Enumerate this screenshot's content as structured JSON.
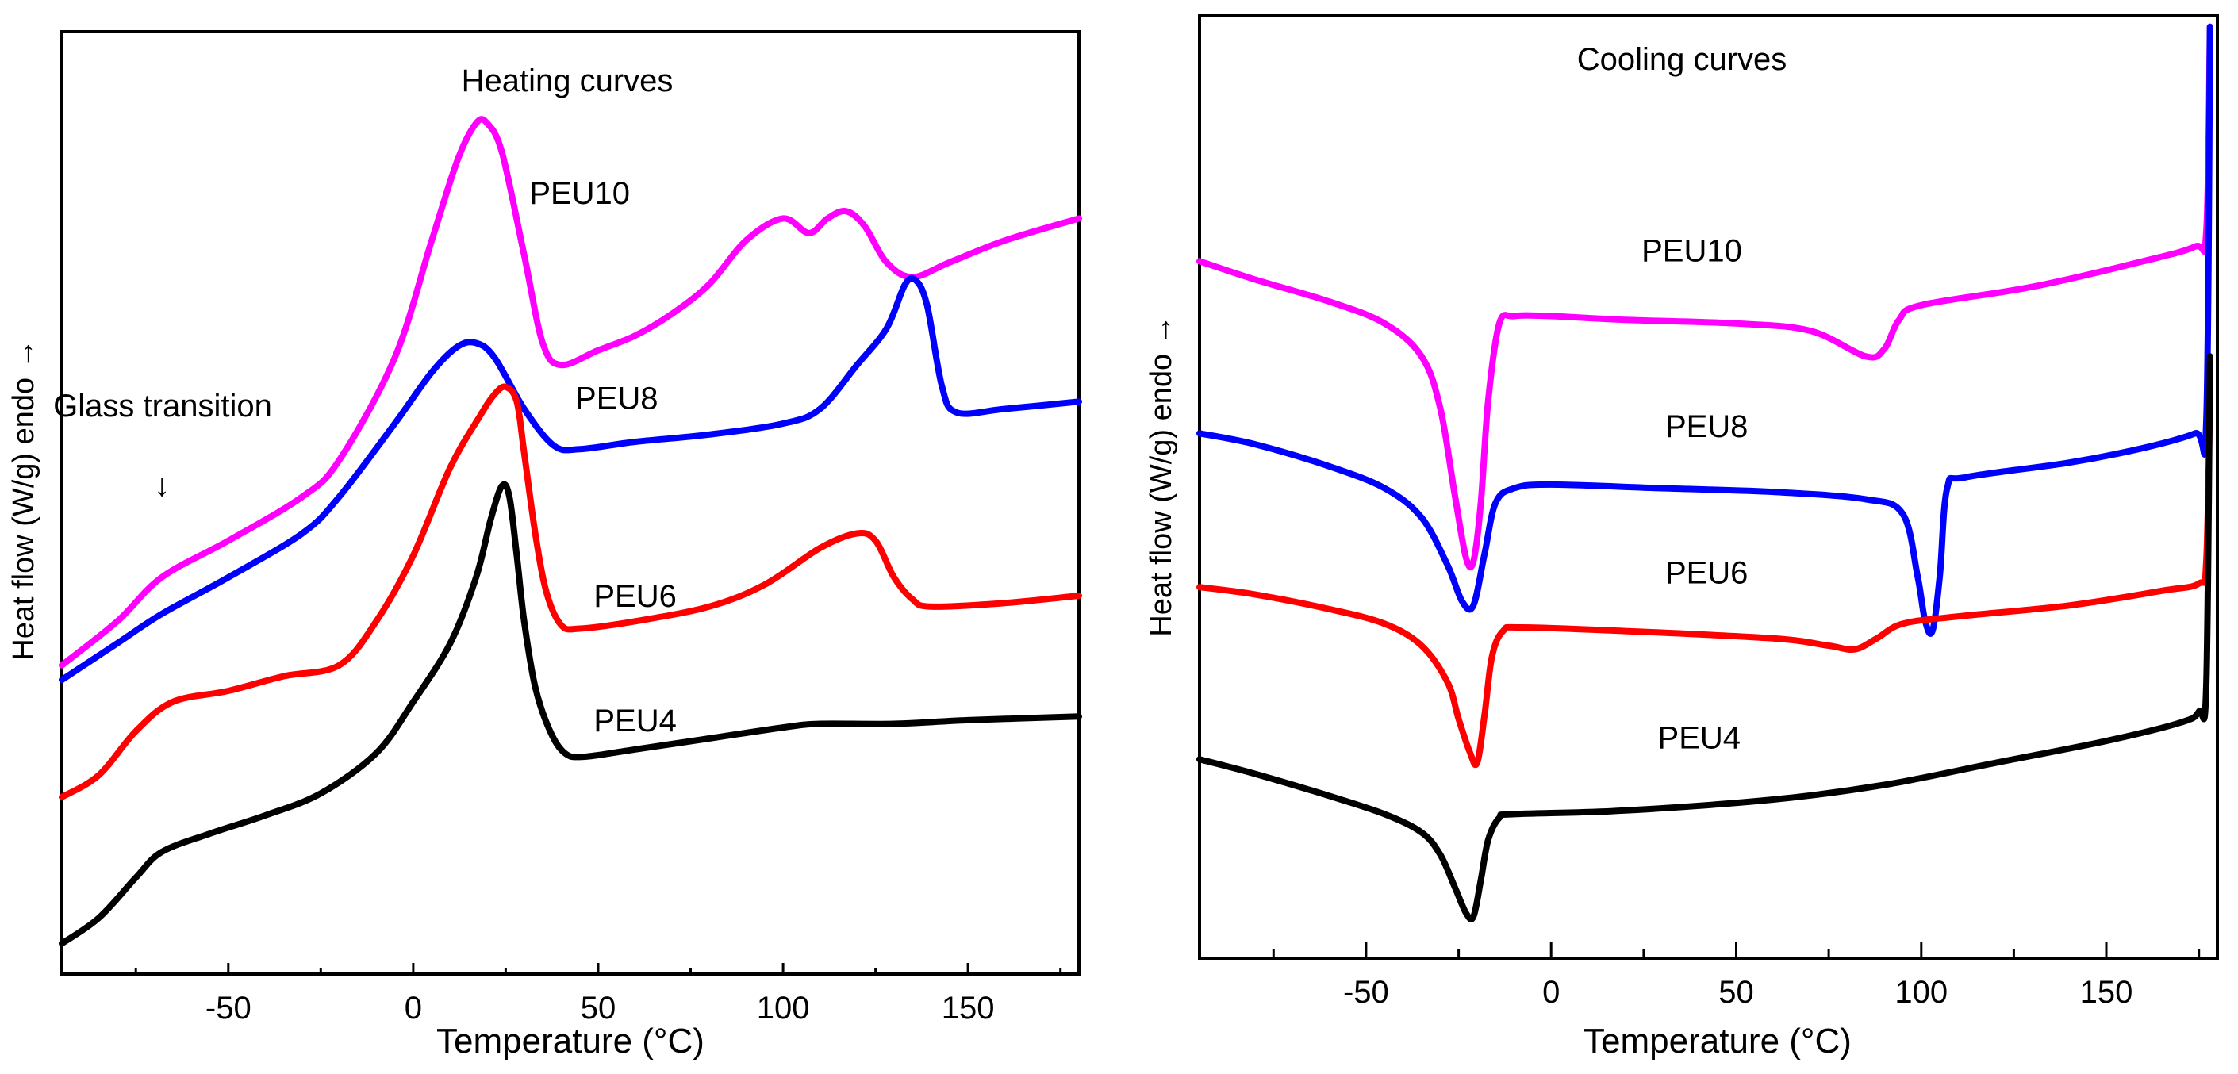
{
  "chart_data": [
    {
      "type": "line",
      "title": "Heating curves",
      "xlabel": "Temperature (°C)",
      "ylabel": "Heat flow (W/g) endo →",
      "xlim": [
        -95,
        180
      ],
      "ylim": [
        0,
        12
      ],
      "x_ticks": [
        -50,
        0,
        50,
        100,
        150
      ],
      "x_tick_labels": [
        "-50",
        "0",
        "50",
        "100",
        "150"
      ],
      "annotation": {
        "text": "Glass transition",
        "arrow": "↓",
        "x": -68
      },
      "series": [
        {
          "name": "PEU10",
          "color": "#ff00ff",
          "label_at": [
            45,
            10.3
          ],
          "points": [
            [
              -95,
              4.0
            ],
            [
              -80,
              4.6
            ],
            [
              -68,
              5.2
            ],
            [
              -50,
              5.7
            ],
            [
              -30,
              6.3
            ],
            [
              -20,
              6.8
            ],
            [
              -5,
              8.2
            ],
            [
              5,
              9.8
            ],
            [
              12,
              10.9
            ],
            [
              17,
              11.4
            ],
            [
              20,
              11.4
            ],
            [
              24,
              11.0
            ],
            [
              30,
              9.6
            ],
            [
              35,
              8.4
            ],
            [
              40,
              8.1
            ],
            [
              50,
              8.3
            ],
            [
              60,
              8.5
            ],
            [
              70,
              8.8
            ],
            [
              80,
              9.2
            ],
            [
              90,
              9.8
            ],
            [
              100,
              10.1
            ],
            [
              107,
              9.9
            ],
            [
              112,
              10.1
            ],
            [
              117,
              10.2
            ],
            [
              122,
              10.0
            ],
            [
              128,
              9.5
            ],
            [
              135,
              9.3
            ],
            [
              145,
              9.5
            ],
            [
              160,
              9.8
            ],
            [
              180,
              10.1
            ]
          ]
        },
        {
          "name": "PEU8",
          "color": "#0000ff",
          "label_at": [
            55,
            7.5
          ],
          "points": [
            [
              -95,
              3.8
            ],
            [
              -80,
              4.3
            ],
            [
              -68,
              4.7
            ],
            [
              -50,
              5.2
            ],
            [
              -30,
              5.8
            ],
            [
              -20,
              6.3
            ],
            [
              -5,
              7.3
            ],
            [
              5,
              8.0
            ],
            [
              12,
              8.35
            ],
            [
              17,
              8.4
            ],
            [
              22,
              8.2
            ],
            [
              30,
              7.5
            ],
            [
              38,
              7.0
            ],
            [
              45,
              6.95
            ],
            [
              60,
              7.05
            ],
            [
              80,
              7.15
            ],
            [
              100,
              7.3
            ],
            [
              110,
              7.5
            ],
            [
              120,
              8.1
            ],
            [
              128,
              8.6
            ],
            [
              133,
              9.2
            ],
            [
              136,
              9.25
            ],
            [
              139,
              8.9
            ],
            [
              143,
              7.8
            ],
            [
              147,
              7.45
            ],
            [
              160,
              7.5
            ],
            [
              180,
              7.6
            ]
          ]
        },
        {
          "name": "PEU6",
          "color": "#ff0000",
          "label_at": [
            60,
            4.8
          ],
          "points": [
            [
              -95,
              2.2
            ],
            [
              -85,
              2.5
            ],
            [
              -75,
              3.1
            ],
            [
              -65,
              3.5
            ],
            [
              -50,
              3.65
            ],
            [
              -35,
              3.85
            ],
            [
              -20,
              4.0
            ],
            [
              -10,
              4.6
            ],
            [
              0,
              5.5
            ],
            [
              10,
              6.7
            ],
            [
              18,
              7.4
            ],
            [
              22,
              7.7
            ],
            [
              25,
              7.8
            ],
            [
              28,
              7.6
            ],
            [
              30,
              6.9
            ],
            [
              33,
              5.8
            ],
            [
              36,
              5.0
            ],
            [
              40,
              4.55
            ],
            [
              45,
              4.5
            ],
            [
              60,
              4.6
            ],
            [
              80,
              4.8
            ],
            [
              95,
              5.1
            ],
            [
              110,
              5.6
            ],
            [
              120,
              5.8
            ],
            [
              125,
              5.7
            ],
            [
              130,
              5.2
            ],
            [
              135,
              4.9
            ],
            [
              140,
              4.8
            ],
            [
              160,
              4.85
            ],
            [
              180,
              4.95
            ]
          ]
        },
        {
          "name": "PEU4",
          "color": "#000000",
          "label_at": [
            60,
            3.1
          ],
          "points": [
            [
              -95,
              0.2
            ],
            [
              -85,
              0.55
            ],
            [
              -75,
              1.1
            ],
            [
              -68,
              1.45
            ],
            [
              -55,
              1.7
            ],
            [
              -40,
              1.95
            ],
            [
              -25,
              2.25
            ],
            [
              -10,
              2.8
            ],
            [
              0,
              3.5
            ],
            [
              10,
              4.3
            ],
            [
              17,
              5.2
            ],
            [
              21,
              6.0
            ],
            [
              24,
              6.45
            ],
            [
              26,
              6.3
            ],
            [
              28,
              5.5
            ],
            [
              30,
              4.6
            ],
            [
              33,
              3.7
            ],
            [
              37,
              3.1
            ],
            [
              41,
              2.8
            ],
            [
              46,
              2.75
            ],
            [
              60,
              2.85
            ],
            [
              80,
              3.0
            ],
            [
              100,
              3.15
            ],
            [
              110,
              3.2
            ],
            [
              130,
              3.2
            ],
            [
              150,
              3.25
            ],
            [
              180,
              3.3
            ]
          ]
        }
      ]
    },
    {
      "type": "line",
      "title": "Cooling curves",
      "xlabel": "Temperature (°C)",
      "ylabel": "Heat flow (W/g) endo →",
      "xlim": [
        -95,
        180
      ],
      "ylim": [
        0,
        12
      ],
      "x_ticks": [
        -50,
        0,
        50,
        100,
        150
      ],
      "x_tick_labels": [
        "-50",
        "0",
        "50",
        "100",
        "150"
      ],
      "series": [
        {
          "name": "PEU10",
          "color": "#ff00ff",
          "label_at": [
            38,
            9.3
          ],
          "points": [
            [
              -95,
              9.3
            ],
            [
              -80,
              9.05
            ],
            [
              -60,
              8.75
            ],
            [
              -45,
              8.45
            ],
            [
              -35,
              8.0
            ],
            [
              -30,
              7.3
            ],
            [
              -26,
              6.1
            ],
            [
              -23,
              5.25
            ],
            [
              -21,
              5.2
            ],
            [
              -19,
              6.0
            ],
            [
              -17,
              7.4
            ],
            [
              -14,
              8.45
            ],
            [
              -10,
              8.55
            ],
            [
              0,
              8.55
            ],
            [
              20,
              8.5
            ],
            [
              50,
              8.45
            ],
            [
              70,
              8.35
            ],
            [
              85,
              8.0
            ],
            [
              90,
              8.1
            ],
            [
              94,
              8.5
            ],
            [
              100,
              8.7
            ],
            [
              130,
              8.95
            ],
            [
              160,
              9.3
            ],
            [
              174,
              9.5
            ],
            [
              177,
              9.7
            ],
            [
              178,
              12.5
            ]
          ]
        },
        {
          "name": "PEU8",
          "color": "#0000ff",
          "label_at": [
            42,
            6.9
          ],
          "points": [
            [
              -95,
              6.95
            ],
            [
              -80,
              6.8
            ],
            [
              -60,
              6.5
            ],
            [
              -45,
              6.2
            ],
            [
              -35,
              5.8
            ],
            [
              -28,
              5.15
            ],
            [
              -24,
              4.65
            ],
            [
              -21,
              4.6
            ],
            [
              -18,
              5.3
            ],
            [
              -15,
              6.0
            ],
            [
              -10,
              6.2
            ],
            [
              0,
              6.25
            ],
            [
              30,
              6.2
            ],
            [
              60,
              6.15
            ],
            [
              85,
              6.05
            ],
            [
              95,
              5.85
            ],
            [
              99,
              5.0
            ],
            [
              101,
              4.4
            ],
            [
              103,
              4.25
            ],
            [
              105,
              5.0
            ],
            [
              107,
              6.2
            ],
            [
              112,
              6.35
            ],
            [
              140,
              6.55
            ],
            [
              160,
              6.75
            ],
            [
              174,
              6.95
            ],
            [
              177,
              7.1
            ],
            [
              178,
              12.5
            ]
          ]
        },
        {
          "name": "PEU6",
          "color": "#ff0000",
          "label_at": [
            42,
            4.9
          ],
          "points": [
            [
              -95,
              4.85
            ],
            [
              -80,
              4.75
            ],
            [
              -60,
              4.55
            ],
            [
              -45,
              4.35
            ],
            [
              -35,
              4.05
            ],
            [
              -28,
              3.55
            ],
            [
              -25,
              3.05
            ],
            [
              -22,
              2.6
            ],
            [
              -20,
              2.45
            ],
            [
              -18,
              3.1
            ],
            [
              -16,
              3.9
            ],
            [
              -13,
              4.25
            ],
            [
              -8,
              4.3
            ],
            [
              20,
              4.25
            ],
            [
              60,
              4.15
            ],
            [
              75,
              4.05
            ],
            [
              82,
              4.0
            ],
            [
              88,
              4.15
            ],
            [
              95,
              4.35
            ],
            [
              110,
              4.45
            ],
            [
              140,
              4.6
            ],
            [
              165,
              4.8
            ],
            [
              175,
              4.9
            ],
            [
              177,
              5.2
            ],
            [
              178,
              7.5
            ]
          ]
        },
        {
          "name": "PEU4",
          "color": "#000000",
          "label_at": [
            40,
            2.65
          ],
          "points": [
            [
              -95,
              2.5
            ],
            [
              -80,
              2.3
            ],
            [
              -60,
              2.0
            ],
            [
              -45,
              1.75
            ],
            [
              -35,
              1.5
            ],
            [
              -30,
              1.2
            ],
            [
              -26,
              0.75
            ],
            [
              -23,
              0.4
            ],
            [
              -21,
              0.35
            ],
            [
              -19,
              0.85
            ],
            [
              -17,
              1.4
            ],
            [
              -14,
              1.7
            ],
            [
              -10,
              1.75
            ],
            [
              20,
              1.8
            ],
            [
              60,
              1.95
            ],
            [
              90,
              2.15
            ],
            [
              120,
              2.45
            ],
            [
              150,
              2.75
            ],
            [
              170,
              3.0
            ],
            [
              175,
              3.15
            ],
            [
              177,
              3.5
            ],
            [
              178,
              8.0
            ]
          ]
        }
      ]
    }
  ]
}
